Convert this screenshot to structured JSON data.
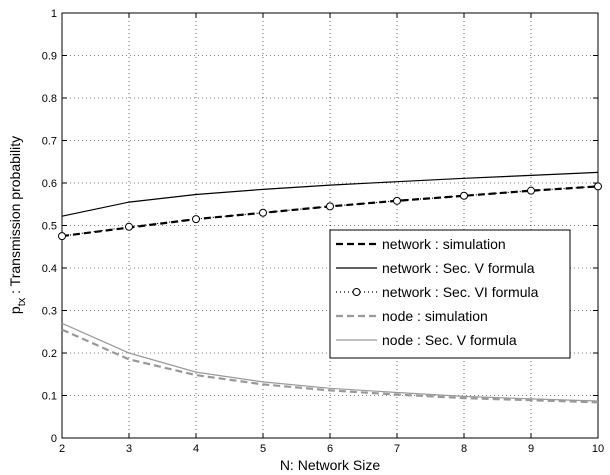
{
  "chart_data": {
    "type": "line",
    "title": "",
    "xlabel": "N: Network Size",
    "ylabel_main": "p",
    "ylabel_sub": "tx",
    "ylabel_rest": " : Transmission probability",
    "xlim": [
      2,
      10
    ],
    "ylim": [
      0,
      1
    ],
    "x_ticks": [
      "2",
      "3",
      "4",
      "5",
      "6",
      "7",
      "8",
      "9",
      "10"
    ],
    "y_ticks": [
      "0",
      "0.1",
      "0.2",
      "0.3",
      "0.4",
      "0.5",
      "0.6",
      "0.7",
      "0.8",
      "0.9",
      "1"
    ],
    "grid": true,
    "legend_position": "center-right",
    "x": [
      2,
      3,
      4,
      5,
      6,
      7,
      8,
      9,
      10
    ],
    "series": [
      {
        "name": "network : simulation",
        "values": [
          0.475,
          0.495,
          0.515,
          0.53,
          0.545,
          0.558,
          0.57,
          0.582,
          0.592
        ],
        "color": "#000000",
        "style": "dashed",
        "marker": "none"
      },
      {
        "name": "network : Sec. V formula",
        "values": [
          0.522,
          0.555,
          0.573,
          0.585,
          0.595,
          0.603,
          0.611,
          0.618,
          0.625
        ],
        "color": "#000000",
        "style": "solid",
        "marker": "none"
      },
      {
        "name": "network : Sec. VI formula",
        "values": [
          0.475,
          0.497,
          0.515,
          0.53,
          0.545,
          0.558,
          0.57,
          0.582,
          0.592
        ],
        "color": "#000000",
        "style": "dotted",
        "marker": "circle"
      },
      {
        "name": "node : simulation",
        "values": [
          0.255,
          0.185,
          0.148,
          0.126,
          0.112,
          0.102,
          0.094,
          0.089,
          0.084
        ],
        "color": "#999999",
        "style": "dashed",
        "marker": "none"
      },
      {
        "name": "node : Sec. V formula",
        "values": [
          0.27,
          0.2,
          0.155,
          0.132,
          0.117,
          0.107,
          0.098,
          0.092,
          0.087
        ],
        "color": "#999999",
        "style": "solid",
        "marker": "none"
      }
    ]
  }
}
